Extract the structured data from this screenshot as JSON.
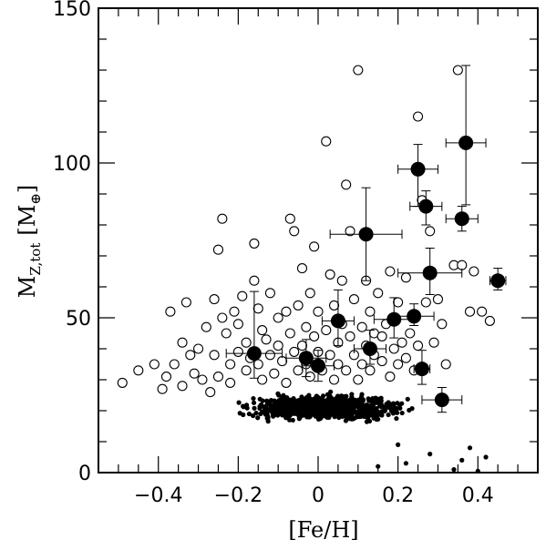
{
  "chart_data": {
    "type": "scatter",
    "title": "",
    "xlabel": "[Fe/H]",
    "ylabel": "M_Z,tot [M⊕]",
    "ylabel_main": "M",
    "ylabel_sub": "Z,tot",
    "ylabel_unit_open": "[M",
    "ylabel_unit_sub": "⊕",
    "ylabel_unit_close": "]",
    "xlim": [
      -0.55,
      0.55
    ],
    "ylim": [
      0,
      150
    ],
    "x_ticks": [
      -0.4,
      -0.2,
      0,
      0.2,
      0.4
    ],
    "x_tick_labels": [
      "−0.4",
      "−0.2",
      "0",
      "0.2",
      "0.4"
    ],
    "y_ticks": [
      0,
      50,
      100,
      150
    ],
    "y_tick_labels": [
      "0",
      "50",
      "100",
      "150"
    ],
    "grid": false,
    "colors": {
      "filled": "#000000",
      "open_stroke": "#000000",
      "small": "#000000"
    },
    "series": [
      {
        "marker": "filled-circle-errorbars",
        "points": [
          {
            "x": 0.37,
            "y": 106.5,
            "xerr": 0.05,
            "yerr_low": 20,
            "yerr_high": 25
          },
          {
            "x": 0.25,
            "y": 98,
            "xerr": 0.05,
            "yerr_low": 12,
            "yerr_high": 8
          },
          {
            "x": 0.27,
            "y": 86,
            "xerr": 0.04,
            "yerr_low": 6,
            "yerr_high": 5
          },
          {
            "x": 0.36,
            "y": 82,
            "xerr": 0.04,
            "yerr_low": 4,
            "yerr_high": 4
          },
          {
            "x": 0.12,
            "y": 77,
            "xerr": 0.09,
            "yerr_low": 15,
            "yerr_high": 15
          },
          {
            "x": 0.28,
            "y": 64.5,
            "xerr": 0.08,
            "yerr_low": 7,
            "yerr_high": 8
          },
          {
            "x": 0.45,
            "y": 62,
            "xerr": 0.02,
            "yerr_low": 3,
            "yerr_high": 4
          },
          {
            "x": 0.24,
            "y": 50.5,
            "xerr": 0.05,
            "yerr_low": 3,
            "yerr_high": 4
          },
          {
            "x": 0.19,
            "y": 49.5,
            "xerr": 0.05,
            "yerr_low": 6,
            "yerr_high": 7
          },
          {
            "x": 0.05,
            "y": 49,
            "xerr": 0.04,
            "yerr_low": 8,
            "yerr_high": 10
          },
          {
            "x": 0.13,
            "y": 40,
            "xerr": 0.04,
            "yerr_low": 5,
            "yerr_high": 6
          },
          {
            "x": -0.16,
            "y": 38.5,
            "xerr": 0.07,
            "yerr_low": 8,
            "yerr_high": 20
          },
          {
            "x": -0.03,
            "y": 37,
            "xerr": 0.05,
            "yerr_low": 6,
            "yerr_high": 6
          },
          {
            "x": 0.0,
            "y": 34.5,
            "xerr": 0.04,
            "yerr_low": 5,
            "yerr_high": 5
          },
          {
            "x": 0.26,
            "y": 33.5,
            "xerr": 0.02,
            "yerr_low": 5,
            "yerr_high": 6
          },
          {
            "x": 0.31,
            "y": 23.5,
            "xerr": 0.05,
            "yerr_low": 4,
            "yerr_high": 4
          }
        ]
      },
      {
        "marker": "open-circle",
        "points": [
          [
            -0.49,
            29
          ],
          [
            -0.45,
            33
          ],
          [
            -0.41,
            35
          ],
          [
            -0.39,
            27
          ],
          [
            -0.38,
            31
          ],
          [
            -0.37,
            52
          ],
          [
            -0.36,
            35
          ],
          [
            -0.34,
            42
          ],
          [
            -0.34,
            28
          ],
          [
            -0.33,
            55
          ],
          [
            -0.32,
            38
          ],
          [
            -0.31,
            32
          ],
          [
            -0.3,
            40
          ],
          [
            -0.29,
            30
          ],
          [
            -0.28,
            47
          ],
          [
            -0.27,
            26
          ],
          [
            -0.26,
            56
          ],
          [
            -0.26,
            38
          ],
          [
            -0.25,
            31
          ],
          [
            -0.25,
            72
          ],
          [
            -0.24,
            82
          ],
          [
            -0.24,
            50
          ],
          [
            -0.23,
            45
          ],
          [
            -0.22,
            35
          ],
          [
            -0.22,
            29
          ],
          [
            -0.21,
            52
          ],
          [
            -0.2,
            39
          ],
          [
            -0.2,
            48
          ],
          [
            -0.19,
            57
          ],
          [
            -0.18,
            33
          ],
          [
            -0.18,
            42
          ],
          [
            -0.17,
            37
          ],
          [
            -0.16,
            74
          ],
          [
            -0.16,
            62
          ],
          [
            -0.15,
            53
          ],
          [
            -0.15,
            35
          ],
          [
            -0.14,
            46
          ],
          [
            -0.14,
            30
          ],
          [
            -0.13,
            43
          ],
          [
            -0.12,
            58
          ],
          [
            -0.12,
            38
          ],
          [
            -0.11,
            32
          ],
          [
            -0.1,
            50
          ],
          [
            -0.1,
            41
          ],
          [
            -0.09,
            36
          ],
          [
            -0.08,
            52
          ],
          [
            -0.08,
            29
          ],
          [
            -0.07,
            45
          ],
          [
            -0.07,
            82
          ],
          [
            -0.06,
            39
          ],
          [
            -0.06,
            78
          ],
          [
            -0.05,
            33
          ],
          [
            -0.05,
            54
          ],
          [
            -0.04,
            41
          ],
          [
            -0.04,
            66
          ],
          [
            -0.03,
            47
          ],
          [
            -0.03,
            35
          ],
          [
            -0.02,
            58
          ],
          [
            -0.02,
            31
          ],
          [
            -0.01,
            44
          ],
          [
            -0.01,
            73
          ],
          [
            0.0,
            39
          ],
          [
            0.0,
            52
          ],
          [
            0.01,
            33
          ],
          [
            0.02,
            107
          ],
          [
            0.02,
            46
          ],
          [
            0.03,
            38
          ],
          [
            0.03,
            64
          ],
          [
            0.04,
            30
          ],
          [
            0.04,
            54
          ],
          [
            0.05,
            42
          ],
          [
            0.05,
            35
          ],
          [
            0.06,
            48
          ],
          [
            0.06,
            62
          ],
          [
            0.07,
            33
          ],
          [
            0.07,
            93
          ],
          [
            0.08,
            44
          ],
          [
            0.08,
            78
          ],
          [
            0.09,
            38
          ],
          [
            0.09,
            56
          ],
          [
            0.1,
            130
          ],
          [
            0.1,
            30
          ],
          [
            0.11,
            47
          ],
          [
            0.11,
            35
          ],
          [
            0.12,
            62
          ],
          [
            0.12,
            41
          ],
          [
            0.13,
            52
          ],
          [
            0.13,
            33
          ],
          [
            0.14,
            45
          ],
          [
            0.14,
            38
          ],
          [
            0.15,
            58
          ],
          [
            0.16,
            36
          ],
          [
            0.16,
            44
          ],
          [
            0.17,
            48
          ],
          [
            0.18,
            31
          ],
          [
            0.18,
            65
          ],
          [
            0.19,
            40
          ],
          [
            0.2,
            35
          ],
          [
            0.2,
            55
          ],
          [
            0.21,
            42
          ],
          [
            0.22,
            37
          ],
          [
            0.22,
            63
          ],
          [
            0.23,
            45
          ],
          [
            0.24,
            33
          ],
          [
            0.25,
            115
          ],
          [
            0.25,
            41
          ],
          [
            0.26,
            88
          ],
          [
            0.27,
            55
          ],
          [
            0.28,
            78
          ],
          [
            0.29,
            42
          ],
          [
            0.3,
            56
          ],
          [
            0.31,
            48
          ],
          [
            0.32,
            35
          ],
          [
            0.34,
            67
          ],
          [
            0.35,
            130
          ],
          [
            0.36,
            67
          ],
          [
            0.38,
            52
          ],
          [
            0.39,
            65
          ],
          [
            0.41,
            52
          ],
          [
            0.43,
            49
          ]
        ]
      },
      {
        "marker": "small-dot",
        "generated_count": 900,
        "x_range": [
          -0.52,
          0.52
        ],
        "y_range": [
          13,
          32
        ]
      }
    ]
  }
}
